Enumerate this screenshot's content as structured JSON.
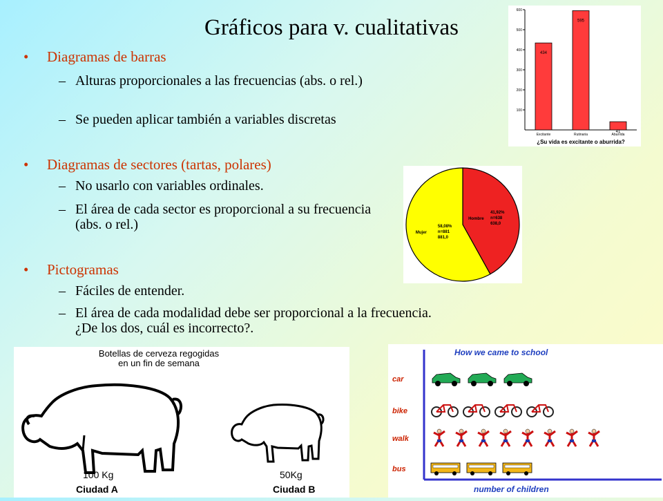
{
  "slide": {
    "title": "Gráficos  para v. cualitativas",
    "sections": [
      {
        "bullet": "Diagramas de barras",
        "items": [
          "Alturas proporcionales a las frecuencias (abs. o rel.)",
          "Se pueden aplicar también a variables discretas"
        ]
      },
      {
        "bullet": "Diagramas de sectores (tartas, polares)",
        "items": [
          "No usarlo con variables ordinales.",
          "El área de cada sector es proporcional a su frecuencia (abs. o rel.)"
        ]
      },
      {
        "bullet": "Pictogramas",
        "items": [
          "Fáciles de entender.",
          "El área de cada modalidad debe ser proporcional a la frecuencia. ¿De los dos, cuál es incorrecto?."
        ]
      }
    ]
  },
  "bar_chart": {
    "xlabel": "¿Su vida es excitante o aburrida?",
    "categories": [
      "Excitante",
      "Rutinaria",
      "Aburrida"
    ],
    "values": [
      434,
      595,
      41
    ],
    "ylim": [
      0,
      600
    ],
    "yticks": [
      "100",
      "200",
      "300",
      "400",
      "500",
      "600"
    ],
    "bar_color": "#ff3b3b"
  },
  "pie_chart": {
    "slices": [
      {
        "name": "Hombre",
        "pct": "41,92%",
        "n": "n=638",
        "val": "638,0",
        "color": "#ee2222",
        "fraction": 0.4192
      },
      {
        "name": "Mujer",
        "pct": "58,08%",
        "n": "n=881",
        "val": "881,0",
        "color": "#ffff00",
        "fraction": 0.5808
      }
    ]
  },
  "pig_chart": {
    "title_line1": "Botellas de cerveza regogidas",
    "title_line2": "en un fin de semana",
    "left_value": "100 Kg",
    "left_city": "Ciudad A",
    "right_value": "50Kg",
    "right_city": "Ciudad B"
  },
  "school_chart": {
    "title": "How we came to school",
    "xlabel": "number of children",
    "rows": [
      {
        "label": "car",
        "count": 3,
        "icon": "car-icon"
      },
      {
        "label": "bike",
        "count": 4,
        "icon": "bike-icon"
      },
      {
        "label": "walk",
        "count": 8,
        "icon": "walker-icon"
      },
      {
        "label": "bus",
        "count": 3,
        "icon": "bus-icon"
      }
    ]
  }
}
